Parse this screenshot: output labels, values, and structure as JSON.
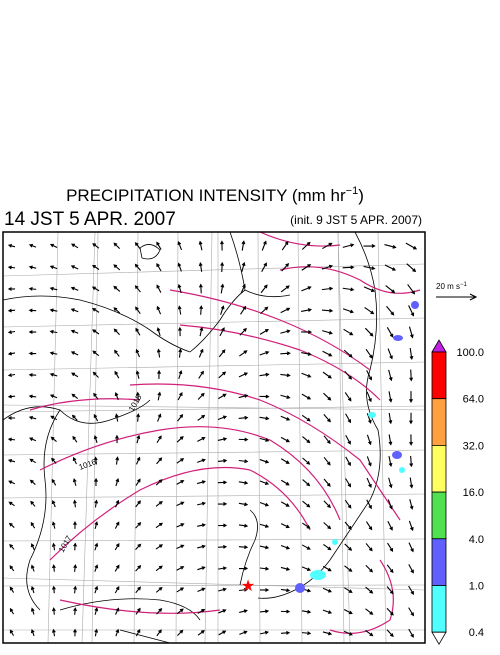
{
  "header": {
    "title": {
      "text": "PRECIPITATION INTENSITY (mm hr",
      "sup": "−1",
      "close": ")"
    },
    "valid_time": "14 JST 5 APR. 2007",
    "init_time": "(init. 9 JST 5 APR. 2007)"
  },
  "wind_scale": {
    "text": "20 m s",
    "sup": "−1"
  },
  "isobar_labels": [
    "1015",
    "1016",
    "1017"
  ],
  "colorbar": {
    "levels": [
      {
        "label": "100.0",
        "color": "#ff0000"
      },
      {
        "label": "64.0",
        "color": "#ffa040"
      },
      {
        "label": "32.0",
        "color": "#ffff60"
      },
      {
        "label": "16.0",
        "color": "#50e050"
      },
      {
        "label": "4.0",
        "color": "#6060ff"
      },
      {
        "label": "1.0",
        "color": "#50ffff"
      },
      {
        "label": "0.4",
        "color": "#ffffff"
      }
    ],
    "over_color": "#c020e0"
  }
}
